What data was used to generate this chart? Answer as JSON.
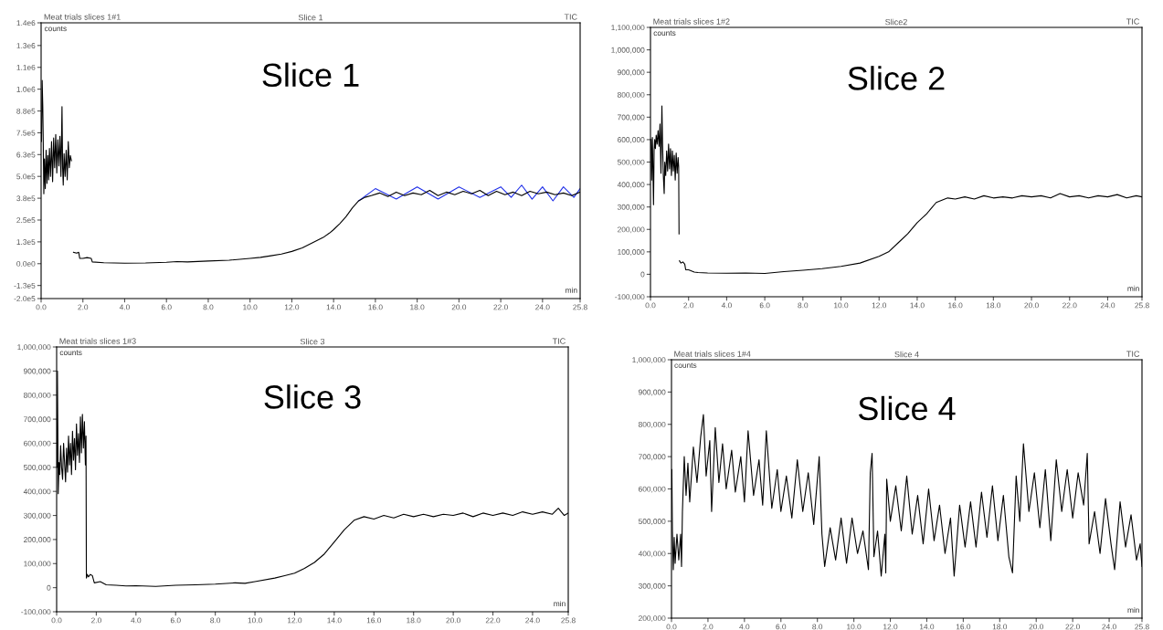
{
  "chart_data": [
    {
      "type": "line",
      "title": "Slice 1",
      "xlabel": "min",
      "ylabel": "counts",
      "annotations": [
        "Meat trials slices 1#1",
        "TIC",
        "Slice 1"
      ],
      "xlim": [
        0,
        25.8
      ],
      "ylim": [
        -200000,
        1380000
      ],
      "grid": false,
      "xticks": [
        {
          "value": 0,
          "label": "0.0"
        },
        {
          "value": 2,
          "label": "2.0"
        },
        {
          "value": 4,
          "label": "4.0"
        },
        {
          "value": 6,
          "label": "6.0"
        },
        {
          "value": 8,
          "label": "8.0"
        },
        {
          "value": 10,
          "label": "10.0"
        },
        {
          "value": 12,
          "label": "12.0"
        },
        {
          "value": 14,
          "label": "14.0"
        },
        {
          "value": 16,
          "label": "16.0"
        },
        {
          "value": 18,
          "label": "18.0"
        },
        {
          "value": 20,
          "label": "20.0"
        },
        {
          "value": 22,
          "label": "22.0"
        },
        {
          "value": 24,
          "label": "24.0"
        },
        {
          "value": 25.8,
          "label": "25.8"
        }
      ],
      "yticks": [
        {
          "value": -200000,
          "label": "-2.0e5"
        },
        {
          "value": -125000,
          "label": "-1.3e5"
        },
        {
          "value": 0,
          "label": "0.0e0"
        },
        {
          "value": 125000,
          "label": "1.3e5"
        },
        {
          "value": 250000,
          "label": "2.5e5"
        },
        {
          "value": 375000,
          "label": "3.8e5"
        },
        {
          "value": 500000,
          "label": "5.0e5"
        },
        {
          "value": 625000,
          "label": "6.3e5"
        },
        {
          "value": 750000,
          "label": "7.5e5"
        },
        {
          "value": 875000,
          "label": "8.8e5"
        },
        {
          "value": 1000000,
          "label": "1.0e6"
        },
        {
          "value": 1125000,
          "label": "1.1e6"
        },
        {
          "value": 1250000,
          "label": "1.3e6"
        },
        {
          "value": 1380000,
          "label": "1.4e6"
        }
      ],
      "series": [
        {
          "color": "#1f2fe8",
          "x": [
            15.2,
            16.0,
            17.0,
            18.0,
            19.0,
            20.0,
            21.0,
            22.0,
            22.5,
            23.0,
            23.5,
            24.0,
            24.5,
            25.0,
            25.5,
            25.8
          ],
          "values": [
            360000,
            430000,
            370000,
            440000,
            370000,
            440000,
            380000,
            440000,
            380000,
            450000,
            370000,
            440000,
            360000,
            440000,
            380000,
            430000
          ]
        },
        {
          "color": "#000000",
          "x": [
            0.02,
            0.05,
            0.08,
            0.1,
            0.13,
            0.16,
            0.2,
            0.24,
            0.28,
            0.32,
            0.36,
            0.4,
            0.45,
            0.5,
            0.55,
            0.6,
            0.65,
            0.7,
            0.75,
            0.8,
            0.85,
            0.9,
            0.95,
            1.0,
            1.03,
            1.06,
            1.1,
            1.15,
            1.2,
            1.25,
            1.3,
            1.35,
            1.4,
            1.45,
            1.5,
            1.55,
            1.7,
            1.8,
            1.85,
            2.0,
            2.2,
            2.4,
            2.45,
            3.0,
            4.0,
            5.0,
            6.0,
            6.5,
            7.0,
            8.0,
            9.0,
            10.0,
            10.5,
            11.0,
            11.5,
            12.0,
            12.5,
            13.0,
            13.5,
            13.8,
            14.0,
            14.3,
            14.6,
            14.9,
            15.2,
            15.5,
            15.8,
            16.2,
            16.6,
            17.0,
            17.4,
            17.8,
            18.2,
            18.6,
            19.0,
            19.4,
            19.8,
            20.2,
            20.6,
            21.0,
            21.4,
            21.8,
            22.2,
            22.6,
            23.0,
            23.4,
            23.8,
            24.2,
            24.6,
            25.0,
            25.4,
            25.8
          ],
          "values": [
            700000,
            1050000,
            900000,
            720000,
            400000,
            600000,
            430000,
            650000,
            460000,
            620000,
            480000,
            660000,
            500000,
            700000,
            470000,
            720000,
            550000,
            740000,
            520000,
            710000,
            560000,
            730000,
            500000,
            900000,
            550000,
            450000,
            630000,
            500000,
            650000,
            480000,
            700000,
            550000,
            620000,
            590000,
            null,
            65000,
            60000,
            65000,
            30000,
            30000,
            35000,
            30000,
            10000,
            5000,
            3000,
            4000,
            8000,
            12000,
            10000,
            15000,
            20000,
            30000,
            36000,
            45000,
            55000,
            70000,
            90000,
            120000,
            150000,
            175000,
            195000,
            230000,
            270000,
            320000,
            360000,
            380000,
            390000,
            405000,
            385000,
            410000,
            390000,
            405000,
            395000,
            420000,
            390000,
            410000,
            395000,
            415000,
            400000,
            420000,
            390000,
            415000,
            395000,
            410000,
            390000,
            415000,
            400000,
            410000,
            395000,
            405000,
            390000,
            410000
          ]
        }
      ]
    },
    {
      "type": "line",
      "title": "Slice2",
      "xlabel": "min",
      "ylabel": "counts",
      "annotations": [
        "Meat trials slices 1#2",
        "TIC",
        "Slice 2"
      ],
      "xlim": [
        0,
        25.8
      ],
      "ylim": [
        -100000,
        1100000
      ],
      "grid": false,
      "xticks": [
        {
          "value": 0,
          "label": "0.0"
        },
        {
          "value": 2,
          "label": "2.0"
        },
        {
          "value": 4,
          "label": "4.0"
        },
        {
          "value": 6,
          "label": "6.0"
        },
        {
          "value": 8,
          "label": "8.0"
        },
        {
          "value": 10,
          "label": "10.0"
        },
        {
          "value": 12,
          "label": "12.0"
        },
        {
          "value": 14,
          "label": "14.0"
        },
        {
          "value": 16,
          "label": "16.0"
        },
        {
          "value": 18,
          "label": "18.0"
        },
        {
          "value": 20,
          "label": "20.0"
        },
        {
          "value": 22,
          "label": "22.0"
        },
        {
          "value": 24,
          "label": "24.0"
        },
        {
          "value": 25.8,
          "label": "25.8"
        }
      ],
      "yticks": [
        {
          "value": -100000,
          "label": "-100,000"
        },
        0,
        {
          "value": 100000,
          "label": "100,000"
        },
        {
          "value": 200000,
          "label": "200,000"
        },
        {
          "value": 300000,
          "label": "300,000"
        },
        {
          "value": 400000,
          "label": "400,000"
        },
        {
          "value": 500000,
          "label": "500,000"
        },
        {
          "value": 600000,
          "label": "600,000"
        },
        {
          "value": 700000,
          "label": "700,000"
        },
        {
          "value": 800000,
          "label": "800,000"
        },
        {
          "value": 900000,
          "label": "900,000"
        },
        {
          "value": 1000000,
          "label": "1,000,000"
        },
        {
          "value": 1100000,
          "label": "1,100,000"
        }
      ],
      "series": [
        {
          "color": "#000000",
          "x": [
            0.03,
            0.06,
            0.1,
            0.13,
            0.16,
            0.19,
            0.22,
            0.26,
            0.3,
            0.35,
            0.4,
            0.45,
            0.5,
            0.55,
            0.6,
            0.63,
            0.67,
            0.72,
            0.75,
            0.8,
            0.85,
            0.9,
            0.95,
            1.0,
            1.05,
            1.1,
            1.15,
            1.2,
            1.25,
            1.3,
            1.35,
            1.4,
            1.45,
            1.48,
            1.5,
            1.51,
            1.52,
            1.6,
            1.7,
            1.8,
            1.85,
            2.0,
            2.3,
            2.5,
            3.0,
            4.0,
            5.0,
            6.0,
            7.0,
            8.0,
            9.0,
            10.0,
            11.0,
            12.0,
            12.5,
            13.0,
            13.5,
            14.0,
            14.5,
            14.8,
            15.0,
            15.3,
            15.6,
            16.0,
            16.5,
            17.0,
            17.5,
            18.0,
            18.5,
            19.0,
            19.5,
            20.0,
            20.5,
            21.0,
            21.5,
            22.0,
            22.5,
            23.0,
            23.5,
            24.0,
            24.5,
            25.0,
            25.5,
            25.8
          ],
          "values": [
            600000,
            420000,
            610000,
            460000,
            310000,
            550000,
            600000,
            560000,
            620000,
            580000,
            640000,
            570000,
            670000,
            450000,
            750000,
            600000,
            450000,
            360000,
            500000,
            440000,
            550000,
            460000,
            580000,
            470000,
            560000,
            440000,
            550000,
            460000,
            530000,
            420000,
            540000,
            450000,
            520000,
            480000,
            180000,
            null,
            60000,
            50000,
            55000,
            45000,
            20000,
            20000,
            10000,
            8000,
            6000,
            5000,
            6000,
            4000,
            12000,
            18000,
            25000,
            35000,
            50000,
            80000,
            100000,
            140000,
            180000,
            230000,
            270000,
            300000,
            320000,
            330000,
            340000,
            335000,
            345000,
            335000,
            350000,
            340000,
            345000,
            340000,
            350000,
            345000,
            350000,
            340000,
            360000,
            345000,
            350000,
            340000,
            350000,
            345000,
            355000,
            340000,
            350000,
            345000
          ]
        }
      ]
    },
    {
      "type": "line",
      "title": "Slice 3",
      "xlabel": "min",
      "ylabel": "counts",
      "annotations": [
        "Meat trials slices 1#3",
        "TIC",
        "Slice 3"
      ],
      "xlim": [
        0,
        25.8
      ],
      "ylim": [
        -100000,
        1000000
      ],
      "grid": false,
      "xticks": [
        {
          "value": 0,
          "label": "0.0"
        },
        {
          "value": 2,
          "label": "2.0"
        },
        {
          "value": 4,
          "label": "4.0"
        },
        {
          "value": 6,
          "label": "6.0"
        },
        {
          "value": 8,
          "label": "8.0"
        },
        {
          "value": 10,
          "label": "10.0"
        },
        {
          "value": 12,
          "label": "12.0"
        },
        {
          "value": 14,
          "label": "14.0"
        },
        {
          "value": 16,
          "label": "16.0"
        },
        {
          "value": 18,
          "label": "18.0"
        },
        {
          "value": 20,
          "label": "20.0"
        },
        {
          "value": 22,
          "label": "22.0"
        },
        {
          "value": 24,
          "label": "24.0"
        },
        {
          "value": 25.8,
          "label": "25.8"
        }
      ],
      "yticks": [
        {
          "value": -100000,
          "label": "-100,000"
        },
        0,
        {
          "value": 100000,
          "label": "100,000"
        },
        {
          "value": 200000,
          "label": "200,000"
        },
        {
          "value": 300000,
          "label": "300,000"
        },
        {
          "value": 400000,
          "label": "400,000"
        },
        {
          "value": 500000,
          "label": "500,000"
        },
        {
          "value": 600000,
          "label": "600,000"
        },
        {
          "value": 700000,
          "label": "700,000"
        },
        {
          "value": 800000,
          "label": "800,000"
        },
        {
          "value": 900000,
          "label": "900,000"
        },
        {
          "value": 1000000,
          "label": "1,000,000"
        }
      ],
      "series": [
        {
          "color": "#000000",
          "x": [
            0.02,
            0.04,
            0.08,
            0.12,
            0.16,
            0.2,
            0.25,
            0.3,
            0.35,
            0.4,
            0.45,
            0.5,
            0.55,
            0.6,
            0.65,
            0.7,
            0.75,
            0.8,
            0.85,
            0.9,
            0.95,
            1.0,
            1.05,
            1.1,
            1.15,
            1.2,
            1.25,
            1.3,
            1.35,
            1.4,
            1.45,
            1.48,
            1.5,
            1.55,
            1.6,
            1.7,
            1.8,
            1.9,
            2.2,
            2.5,
            3.0,
            3.5,
            4.0,
            5.0,
            6.0,
            7.0,
            8.0,
            9.0,
            9.5,
            10.0,
            11.0,
            11.5,
            12.0,
            12.5,
            13.0,
            13.5,
            14.0,
            14.5,
            15.0,
            15.5,
            16.0,
            16.5,
            17.0,
            17.5,
            18.0,
            18.5,
            19.0,
            19.5,
            20.0,
            20.5,
            21.0,
            21.5,
            22.0,
            22.5,
            23.0,
            23.5,
            24.0,
            24.5,
            25.0,
            25.3,
            25.6,
            25.8
          ],
          "values": [
            500000,
            900000,
            390000,
            520000,
            470000,
            590000,
            500000,
            450000,
            600000,
            520000,
            440000,
            580000,
            480000,
            630000,
            510000,
            600000,
            470000,
            650000,
            530000,
            620000,
            490000,
            680000,
            550000,
            640000,
            520000,
            710000,
            560000,
            720000,
            580000,
            690000,
            510000,
            630000,
            40000,
            55000,
            45000,
            55000,
            50000,
            20000,
            25000,
            12000,
            10000,
            7000,
            8000,
            5000,
            10000,
            12000,
            15000,
            20000,
            18000,
            25000,
            40000,
            50000,
            60000,
            80000,
            105000,
            140000,
            190000,
            240000,
            280000,
            295000,
            285000,
            300000,
            290000,
            305000,
            295000,
            305000,
            295000,
            305000,
            300000,
            310000,
            295000,
            310000,
            300000,
            310000,
            300000,
            315000,
            305000,
            315000,
            305000,
            330000,
            300000,
            310000
          ]
        }
      ]
    },
    {
      "type": "line",
      "title": "Slice 4",
      "xlabel": "min",
      "ylabel": "counts",
      "annotations": [
        "Meat trials slices 1#4",
        "TIC",
        "Slice 4"
      ],
      "xlim": [
        0,
        25.8
      ],
      "ylim": [
        200000,
        1000000
      ],
      "grid": false,
      "xticks": [
        {
          "value": 0,
          "label": "0.0"
        },
        {
          "value": 2,
          "label": "2.0"
        },
        {
          "value": 4,
          "label": "4.0"
        },
        {
          "value": 6,
          "label": "6.0"
        },
        {
          "value": 8,
          "label": "8.0"
        },
        {
          "value": 10,
          "label": "10.0"
        },
        {
          "value": 12,
          "label": "12.0"
        },
        {
          "value": 14,
          "label": "14.0"
        },
        {
          "value": 16,
          "label": "16.0"
        },
        {
          "value": 18,
          "label": "18.0"
        },
        {
          "value": 20,
          "label": "20.0"
        },
        {
          "value": 22,
          "label": "22.0"
        },
        {
          "value": 24,
          "label": "24.0"
        },
        {
          "value": 25.8,
          "label": "25.8"
        }
      ],
      "yticks": [
        {
          "value": 200000,
          "label": "200,000"
        },
        {
          "value": 300000,
          "label": "300,000"
        },
        {
          "value": 400000,
          "label": "400,000"
        },
        {
          "value": 500000,
          "label": "500,000"
        },
        {
          "value": 600000,
          "label": "600,000"
        },
        {
          "value": 700000,
          "label": "700,000"
        },
        {
          "value": 800000,
          "label": "800,000"
        },
        {
          "value": 900000,
          "label": "900,000"
        },
        {
          "value": 1000000,
          "label": "1,000,000"
        }
      ],
      "series": [
        {
          "color": "#000000",
          "x": [
            0.02,
            0.05,
            0.1,
            0.15,
            0.2,
            0.3,
            0.4,
            0.5,
            0.55,
            0.6,
            0.7,
            0.8,
            0.9,
            1.0,
            1.2,
            1.4,
            1.6,
            1.75,
            1.9,
            2.1,
            2.2,
            2.4,
            2.6,
            2.8,
            3.0,
            3.3,
            3.5,
            3.8,
            4.0,
            4.2,
            4.5,
            4.8,
            5.0,
            5.2,
            5.5,
            5.8,
            6.0,
            6.3,
            6.6,
            6.9,
            7.2,
            7.5,
            7.8,
            8.1,
            8.25,
            8.4,
            8.7,
            9.0,
            9.3,
            9.6,
            9.9,
            10.2,
            10.5,
            10.8,
            10.9,
            11.0,
            11.1,
            11.3,
            11.5,
            11.7,
            11.75,
            11.8,
            12.0,
            12.3,
            12.6,
            12.9,
            13.2,
            13.5,
            13.8,
            14.1,
            14.4,
            14.7,
            15.0,
            15.3,
            15.5,
            15.8,
            16.1,
            16.4,
            16.7,
            17.0,
            17.3,
            17.6,
            17.9,
            18.2,
            18.5,
            18.7,
            18.9,
            19.1,
            19.3,
            19.6,
            19.9,
            20.2,
            20.5,
            20.8,
            21.1,
            21.4,
            21.7,
            22.0,
            22.3,
            22.6,
            22.8,
            22.9,
            23.2,
            23.5,
            23.8,
            24.1,
            24.3,
            24.6,
            24.9,
            25.2,
            25.5,
            25.7,
            25.8
          ],
          "values": [
            660000,
            470000,
            350000,
            450000,
            370000,
            460000,
            380000,
            460000,
            360000,
            530000,
            700000,
            580000,
            680000,
            560000,
            730000,
            620000,
            760000,
            830000,
            640000,
            750000,
            530000,
            790000,
            620000,
            740000,
            600000,
            720000,
            590000,
            700000,
            560000,
            780000,
            580000,
            690000,
            550000,
            780000,
            540000,
            660000,
            530000,
            640000,
            510000,
            690000,
            530000,
            650000,
            490000,
            700000,
            460000,
            360000,
            480000,
            380000,
            510000,
            370000,
            510000,
            400000,
            470000,
            350000,
            650000,
            710000,
            390000,
            470000,
            330000,
            460000,
            340000,
            630000,
            500000,
            610000,
            470000,
            640000,
            460000,
            580000,
            430000,
            600000,
            440000,
            550000,
            400000,
            510000,
            330000,
            550000,
            420000,
            560000,
            420000,
            590000,
            450000,
            610000,
            440000,
            580000,
            390000,
            340000,
            640000,
            500000,
            740000,
            530000,
            650000,
            480000,
            660000,
            440000,
            690000,
            530000,
            660000,
            510000,
            650000,
            550000,
            710000,
            430000,
            530000,
            400000,
            570000,
            430000,
            350000,
            560000,
            420000,
            520000,
            380000,
            430000,
            360000
          ]
        }
      ]
    }
  ]
}
